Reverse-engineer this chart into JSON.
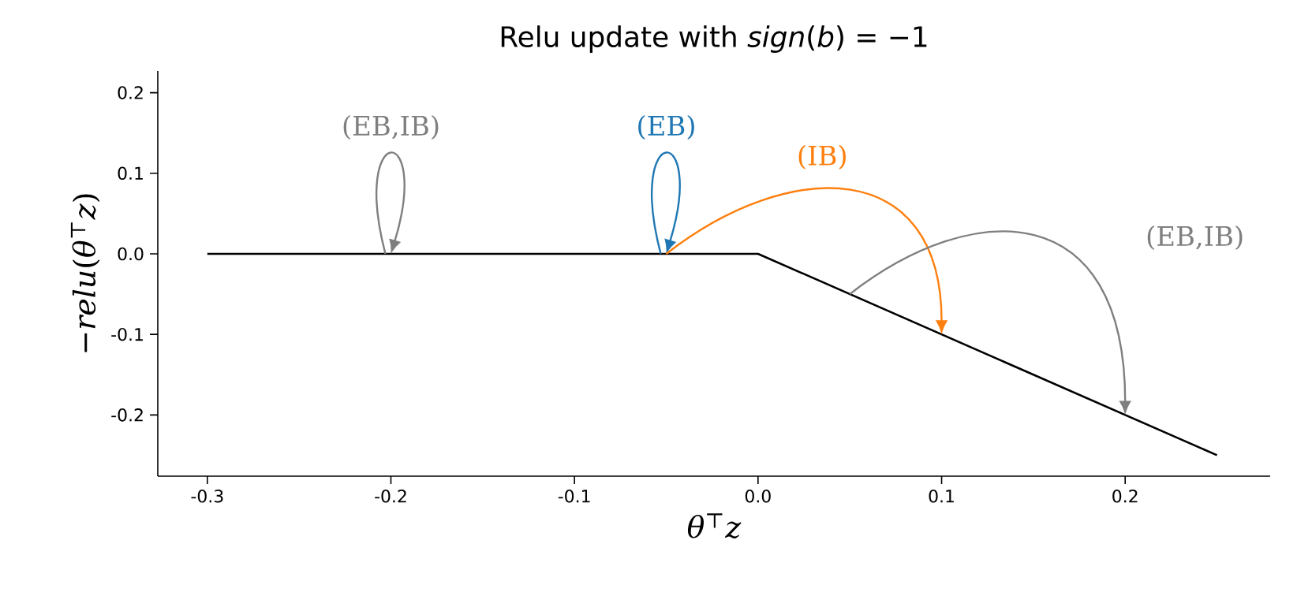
{
  "chart_data": {
    "type": "line",
    "title": "Relu update with *sign*(*b*) = −1",
    "xlabel": "*θ*$^{⊤}$*z*",
    "ylabel": "−*relu*(*θ*$^{⊤}$*z*)",
    "x": [
      -0.3,
      0,
      0.25
    ],
    "series": [
      {
        "color": "#000000",
        "values": [
          0,
          0,
          -0.25
        ]
      }
    ],
    "xlim": [
      -0.327,
      0.279
    ],
    "ylim": [
      -0.276,
      0.227
    ],
    "xticks": [
      -0.3,
      -0.2,
      -0.1,
      {
        "value": 0,
        "label": "0.0"
      },
      0.1,
      0.2
    ],
    "yticks": [
      -0.2,
      -0.1,
      {
        "value": 0,
        "label": "0.0"
      },
      0.1,
      0.2
    ],
    "grid": false,
    "marker": "none",
    "line_style": "solid",
    "annotations": [
      "(EB,IB)",
      "(EB)",
      "(IB)",
      "(EB,IB)"
    ]
  }
}
